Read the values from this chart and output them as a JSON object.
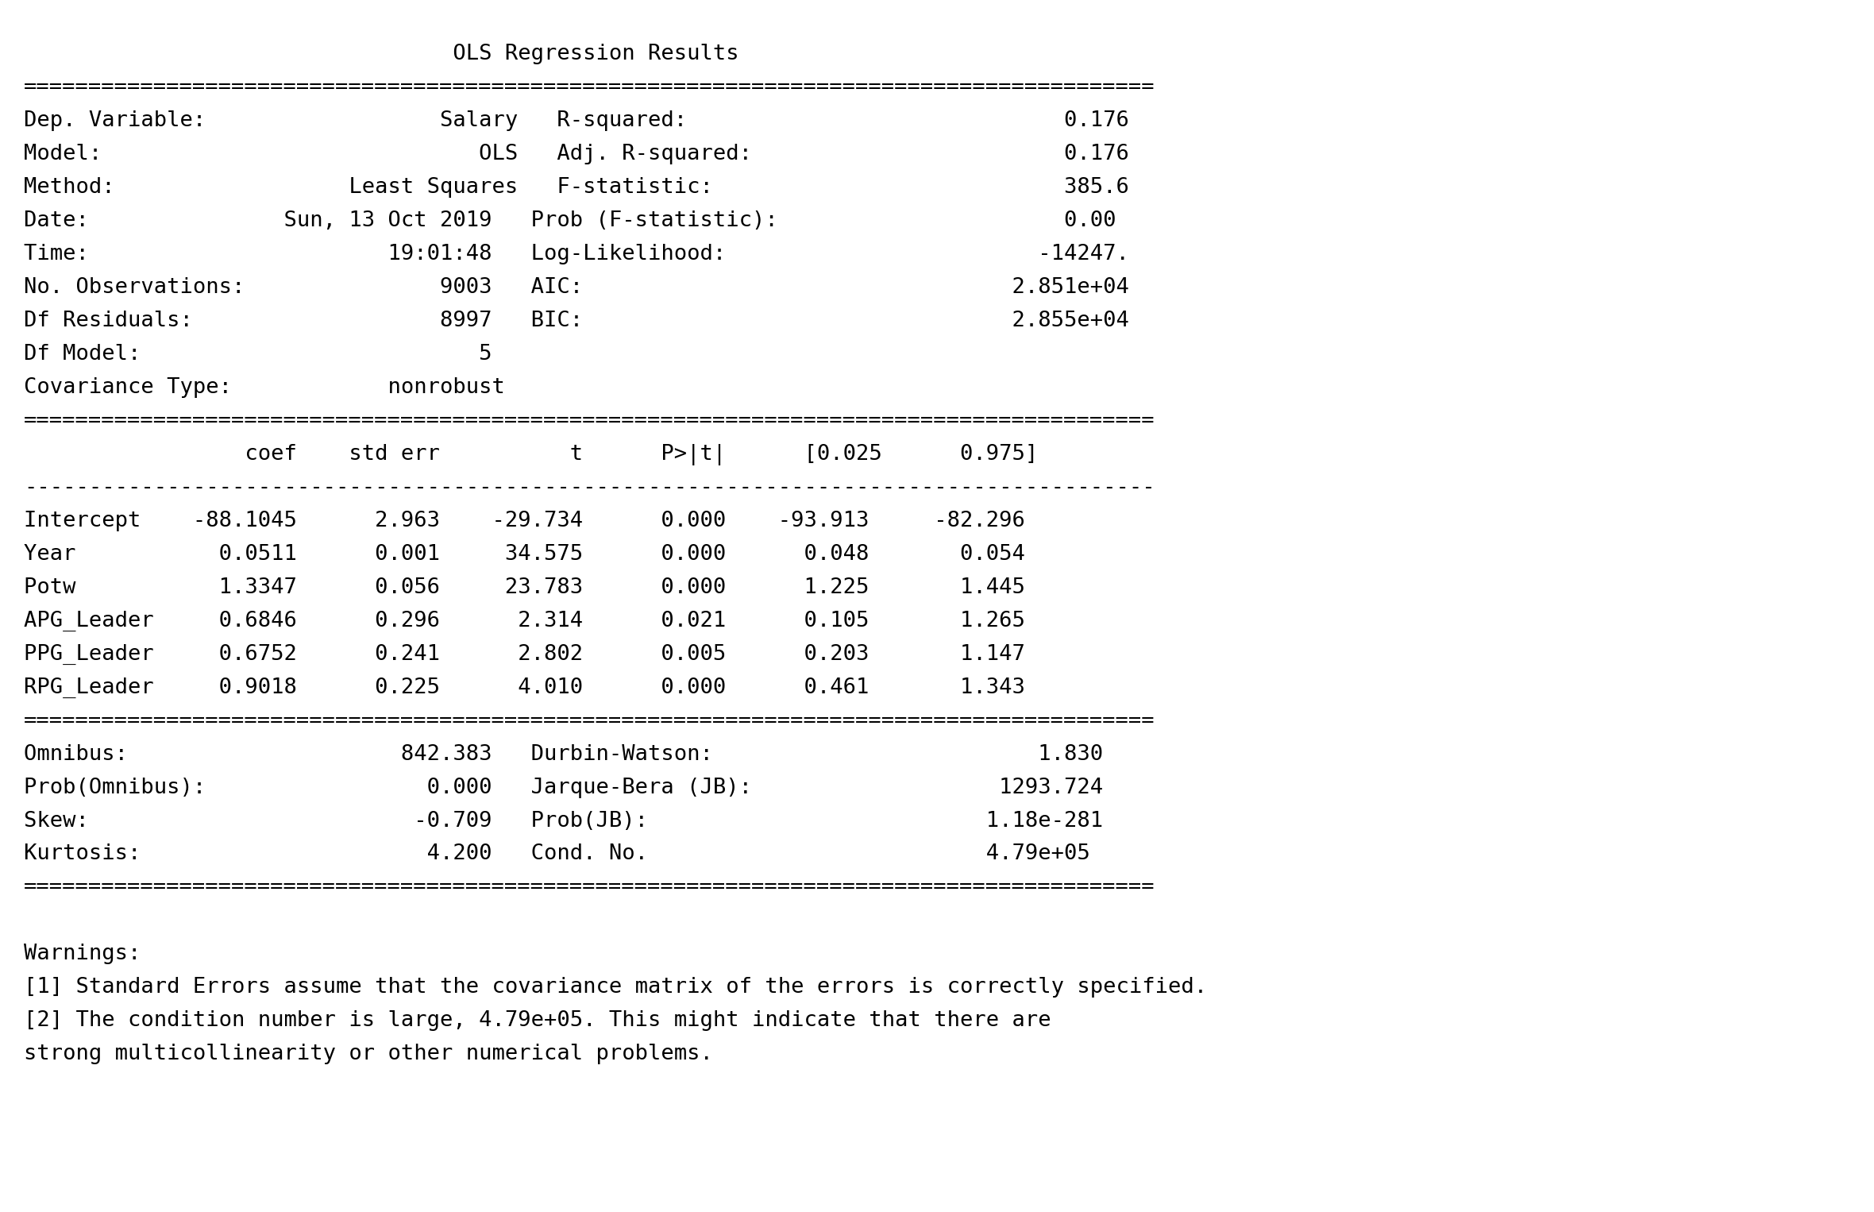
{
  "background_color": "#ffffff",
  "text_color": "#000000",
  "font_family": "monospace",
  "fontsize": 19.5,
  "title_line": "                                 OLS Regression Results                                 ",
  "lines": [
    "=======================================================================================",
    "Dep. Variable:                  Salary   R-squared:                             0.176",
    "Model:                             OLS   Adj. R-squared:                        0.176",
    "Method:                  Least Squares   F-statistic:                           385.6",
    "Date:               Sun, 13 Oct 2019   Prob (F-statistic):                      0.00",
    "Time:                       19:01:48   Log-Likelihood:                        -14247.",
    "No. Observations:               9003   AIC:                                 2.851e+04",
    "Df Residuals:                   8997   BIC:                                 2.855e+04",
    "Df Model:                          5                                                  ",
    "Covariance Type:            nonrobust                                                  ",
    "=======================================================================================",
    "                 coef    std err          t      P>|t|      [0.025      0.975]",
    "---------------------------------------------------------------------------------------",
    "Intercept    -88.1045      2.963    -29.734      0.000    -93.913     -82.296",
    "Year           0.0511      0.001     34.575      0.000      0.048       0.054",
    "Potw           1.3347      0.056     23.783      0.000      1.225       1.445",
    "APG_Leader     0.6846      0.296      2.314      0.021      0.105       1.265",
    "PPG_Leader     0.6752      0.241      2.802      0.005      0.203       1.147",
    "RPG_Leader     0.9018      0.225      4.010      0.000      0.461       1.343",
    "=======================================================================================",
    "Omnibus:                     842.383   Durbin-Watson:                         1.830",
    "Prob(Omnibus):                 0.000   Jarque-Bera (JB):                   1293.724",
    "Skew:                         -0.709   Prob(JB):                          1.18e-281",
    "Kurtosis:                      4.200   Cond. No.                          4.79e+05",
    "=======================================================================================",
    "",
    "Warnings:",
    "[1] Standard Errors assume that the covariance matrix of the errors is correctly specified.",
    "[2] The condition number is large, 4.79e+05. This might indicate that there are",
    "strong multicollinearity or other numerical problems."
  ]
}
